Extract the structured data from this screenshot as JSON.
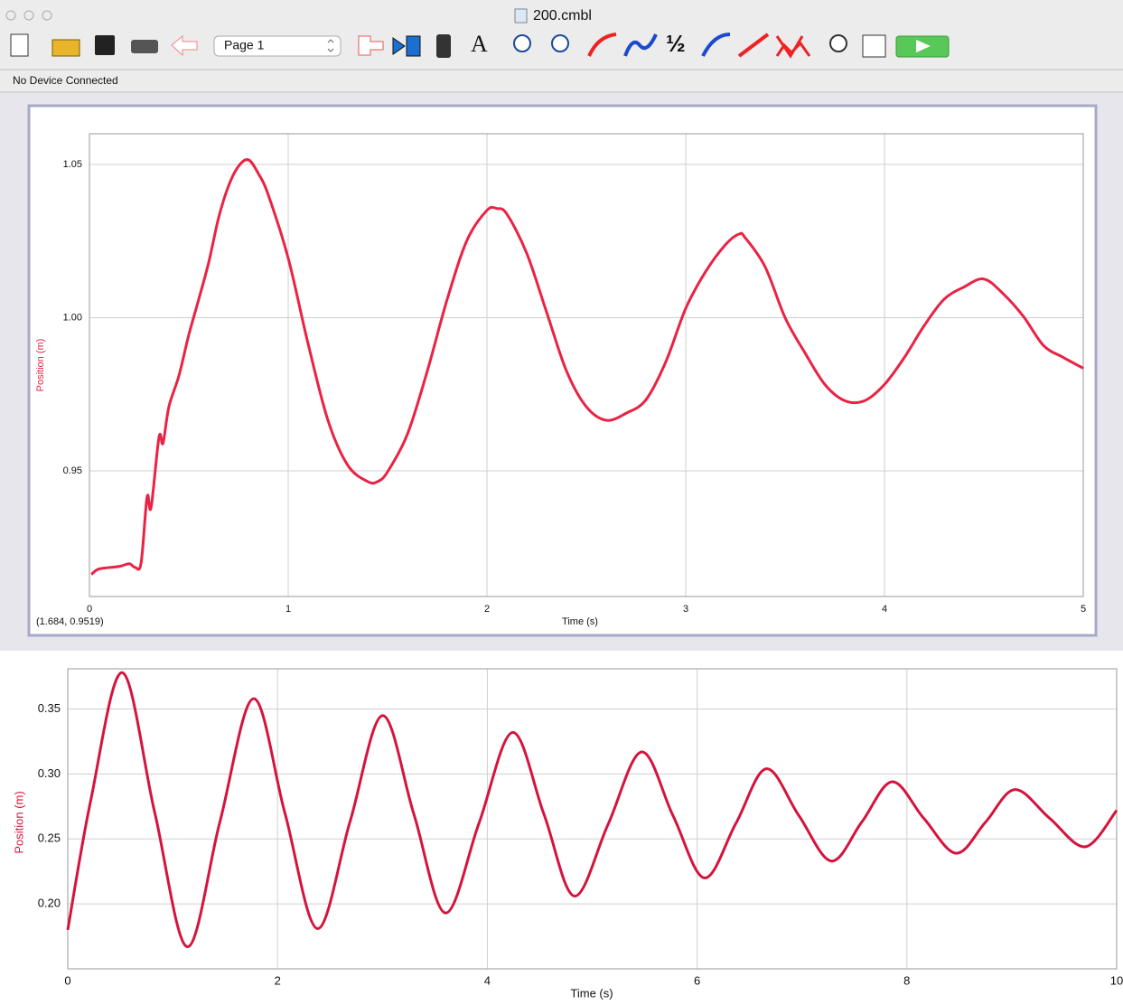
{
  "window": {
    "title": "200.cmbl"
  },
  "toolbar": {
    "page_select": "Page 1"
  },
  "status": "No Device Connected",
  "readout": "(1.684, 0.9519)",
  "chart_data": [
    {
      "type": "line",
      "x_label": "Time (s)",
      "y_label": "Position (m)",
      "color": "#ea2244",
      "grid": true,
      "xlim": [
        0,
        5
      ],
      "ylim": [
        0.909,
        1.06
      ],
      "xticks": [
        0,
        1,
        2,
        3,
        4,
        5
      ],
      "yticks": [
        0.95,
        {
          "value": 1.0,
          "label": "1.00"
        },
        1.05
      ],
      "x": [
        0.01,
        0.05,
        0.15,
        0.2,
        0.23,
        0.26,
        0.29,
        0.31,
        0.35,
        0.37,
        0.4,
        0.45,
        0.5,
        0.55,
        0.6,
        0.65,
        0.7,
        0.75,
        0.8,
        0.85,
        0.9,
        1.0,
        1.1,
        1.2,
        1.3,
        1.4,
        1.45,
        1.5,
        1.6,
        1.7,
        1.8,
        1.9,
        2.0,
        2.05,
        2.1,
        2.2,
        2.3,
        2.4,
        2.5,
        2.6,
        2.7,
        2.8,
        2.9,
        3.0,
        3.1,
        3.2,
        3.27,
        3.3,
        3.4,
        3.5,
        3.6,
        3.7,
        3.8,
        3.9,
        4.0,
        4.1,
        4.2,
        4.3,
        4.4,
        4.5,
        4.6,
        4.7,
        4.8,
        4.9,
        5.0
      ],
      "values": [
        0.9162,
        0.918,
        0.9188,
        0.9197,
        0.9185,
        0.92,
        0.9415,
        0.938,
        0.961,
        0.959,
        0.971,
        0.981,
        0.9944,
        1.006,
        1.018,
        1.0326,
        1.043,
        1.0494,
        1.0515,
        1.047,
        1.04,
        1.0194,
        0.9915,
        0.9665,
        0.9518,
        0.9465,
        0.9465,
        0.9497,
        0.962,
        0.9826,
        1.006,
        1.0253,
        1.035,
        1.0356,
        1.0338,
        1.021,
        1.0018,
        0.9826,
        0.9709,
        0.9665,
        0.9688,
        0.9732,
        0.9856,
        1.003,
        1.015,
        1.0238,
        1.0273,
        1.026,
        1.0165,
        1.0,
        0.9885,
        0.9782,
        0.9729,
        0.9729,
        0.9782,
        0.987,
        0.9974,
        1.006,
        1.01,
        1.0126,
        1.0076,
        1.0003,
        0.9909,
        0.987,
        0.9835
      ]
    },
    {
      "type": "line",
      "x_label": "Time (s)",
      "y_label": "Position (m)",
      "color": "#d4143c",
      "grid": true,
      "xlim": [
        0,
        10
      ],
      "ylim": [
        0.15,
        0.381
      ],
      "xticks": [
        0,
        2,
        4,
        6,
        8,
        10
      ],
      "yticks": [
        {
          "value": 0.2,
          "label": "0.20"
        },
        0.25,
        {
          "value": 0.3,
          "label": "0.30"
        },
        0.35
      ],
      "x": [
        0,
        0.22,
        0.52,
        0.83,
        1.14,
        1.45,
        1.77,
        2.07,
        2.38,
        2.69,
        3.0,
        3.3,
        3.6,
        3.92,
        4.24,
        4.54,
        4.83,
        5.15,
        5.47,
        5.77,
        6.07,
        6.37,
        6.66,
        6.97,
        7.28,
        7.57,
        7.86,
        8.16,
        8.47,
        8.75,
        9.03,
        9.36,
        9.7,
        10
      ],
      "values": [
        0.18,
        0.28,
        0.378,
        0.27,
        0.167,
        0.263,
        0.358,
        0.27,
        0.181,
        0.263,
        0.345,
        0.269,
        0.193,
        0.262,
        0.332,
        0.269,
        0.206,
        0.261,
        0.317,
        0.268,
        0.22,
        0.262,
        0.304,
        0.268,
        0.233,
        0.263,
        0.294,
        0.266,
        0.239,
        0.263,
        0.288,
        0.266,
        0.244,
        0.272
      ]
    }
  ]
}
